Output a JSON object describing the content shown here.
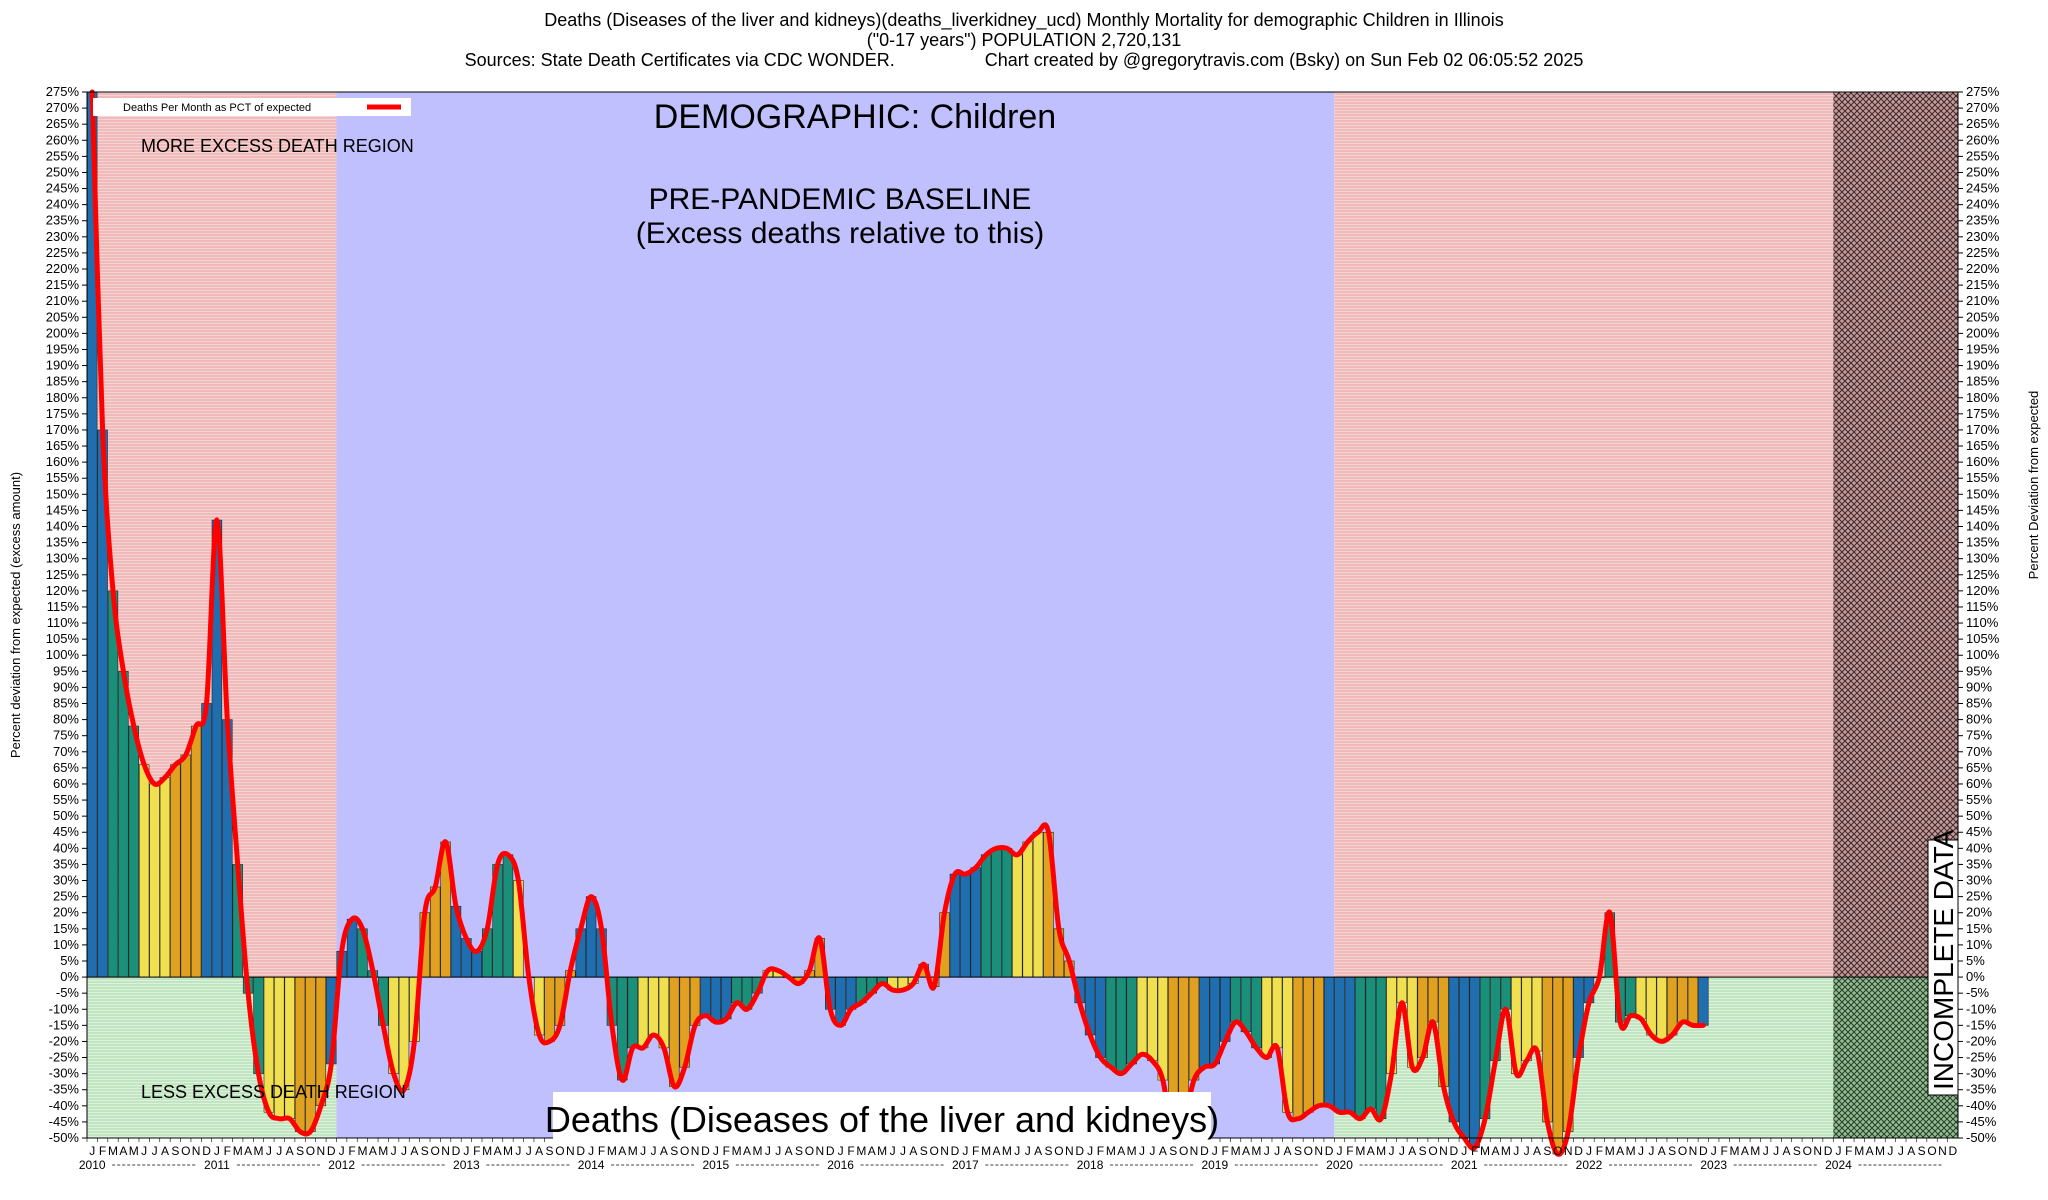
{
  "header": {
    "title_line1": "Deaths (Diseases of the liver and kidneys)(deaths_liverkidney_ucd) Monthly Mortality for demographic Children in Illinois",
    "title_line2": "(\"0-17 years\") POPULATION 2,720,131",
    "sources": "Sources: State Death Certificates via CDC WONDER.",
    "credit": "Chart created by @gregorytravis.com (Bsky) on Sun Feb 02 06:05:52 2025"
  },
  "annotations": {
    "demographic": "DEMOGRAPHIC: Children",
    "baseline_line1": "PRE-PANDEMIC BASELINE",
    "baseline_line2": "(Excess deaths relative to this)",
    "more_region": "MORE EXCESS DEATH REGION",
    "less_region": "LESS EXCESS DEATH REGION",
    "incomplete": "INCOMPLETE DATA",
    "bottom_label": "Deaths (Diseases of the liver and kidneys)"
  },
  "colors": {
    "line": "#ff0000",
    "excess_bg": "#f4c4c4",
    "deficit_bg": "#cfeccf",
    "baseline_bg": "#c0c0ff",
    "bar_palette": [
      "#1f6fb0",
      "#1a8f7a",
      "#f0e050",
      "#e0a020"
    ]
  },
  "chart_data": {
    "type": "bar",
    "title": "Deaths (Diseases of the liver and kidneys)(deaths_liverkidney_ucd) Monthly Mortality for demographic Children in Illinois",
    "ylabel_left": "Percent deviation from expected (excess amount)",
    "ylabel_right": "Percent Deviation from expected",
    "legend": "Deaths Per Month as PCT of expected",
    "ylim": [
      -50,
      275
    ],
    "y_tick_step": 5,
    "month_letters": [
      "J",
      "F",
      "M",
      "A",
      "M",
      "J",
      "J",
      "A",
      "S",
      "O",
      "N",
      "D"
    ],
    "years": [
      "2010",
      "2011",
      "2012",
      "2013",
      "2014",
      "2015",
      "2016",
      "2017",
      "2018",
      "2019",
      "2020",
      "2021",
      "2022",
      "2023",
      "2024"
    ],
    "regions": [
      {
        "from_month": 0,
        "to_month": 24,
        "kind": "excess/deficit"
      },
      {
        "from_month": 24,
        "to_month": 120,
        "kind": "baseline"
      },
      {
        "from_month": 120,
        "to_month": 168,
        "kind": "excess/deficit"
      },
      {
        "from_month": 168,
        "to_month": 180,
        "kind": "incomplete"
      }
    ],
    "values": [
      275,
      170,
      120,
      95,
      78,
      66,
      60,
      62,
      66,
      69,
      78,
      85,
      142,
      80,
      35,
      -5,
      -30,
      -42,
      -44,
      -44,
      -48,
      -48,
      -40,
      -27,
      8,
      18,
      15,
      2,
      -15,
      -30,
      -35,
      -20,
      20,
      28,
      42,
      22,
      12,
      8,
      15,
      35,
      38,
      30,
      0,
      -18,
      -20,
      -15,
      2,
      15,
      25,
      15,
      -15,
      -32,
      -22,
      -22,
      -18,
      -22,
      -34,
      -28,
      -15,
      -12,
      -14,
      -13,
      -8,
      -10,
      -5,
      2,
      2,
      0,
      -2,
      2,
      12,
      -10,
      -15,
      -10,
      -8,
      -5,
      -2,
      -4,
      -4,
      -2,
      4,
      -3,
      20,
      32,
      32,
      34,
      38,
      40,
      40,
      38,
      42,
      45,
      45,
      15,
      5,
      -8,
      -18,
      -25,
      -28,
      -30,
      -27,
      -24,
      -26,
      -32,
      -50,
      -45,
      -32,
      -28,
      -27,
      -20,
      -14,
      -17,
      -22,
      -25,
      -22,
      -42,
      -44,
      -42,
      -40,
      -40,
      -42,
      -42,
      -44,
      -41,
      -44,
      -30,
      -8,
      -28,
      -25,
      -14,
      -34,
      -45,
      -50,
      -53,
      -44,
      -26,
      -10,
      -30,
      -26,
      -23,
      -45,
      -55,
      -48,
      -25,
      -8,
      0,
      20,
      -14,
      -12,
      -13,
      -18,
      -20,
      -18,
      -14,
      -15,
      -15
    ]
  }
}
